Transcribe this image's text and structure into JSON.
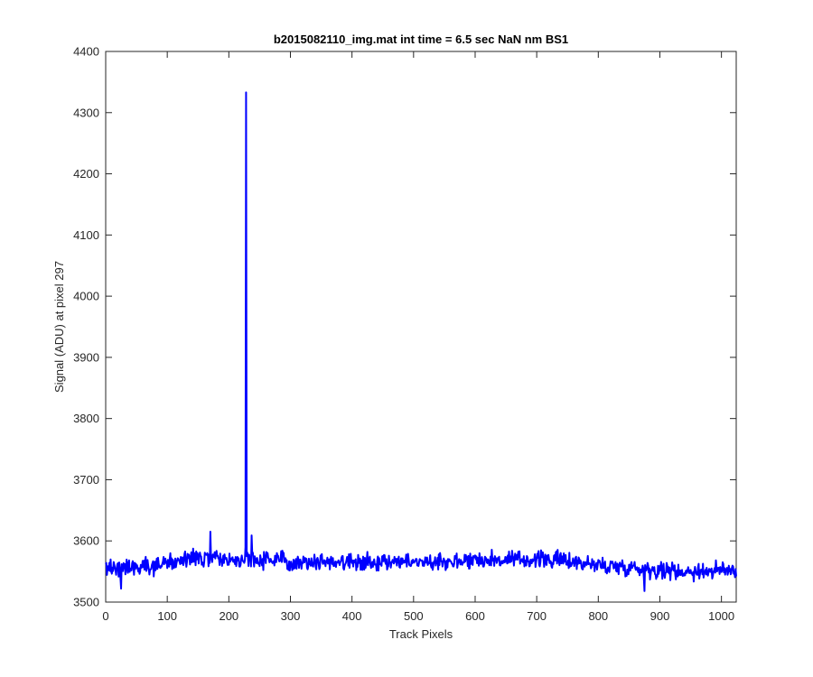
{
  "chart_data": {
    "type": "line",
    "title": "b2015082110_img.mat int time = 6.5 sec  NaN nm BS1",
    "xlabel": "Track Pixels",
    "ylabel": "Signal (ADU) at pixel 297",
    "xlim": [
      0,
      1024
    ],
    "ylim": [
      3500,
      4400
    ],
    "xticks": [
      0,
      100,
      200,
      300,
      400,
      500,
      600,
      700,
      800,
      900,
      1000
    ],
    "yticks": [
      3500,
      3600,
      3700,
      3800,
      3900,
      4000,
      4100,
      4200,
      4300,
      4400
    ],
    "grid": false,
    "series": [
      {
        "color": "#0000ff",
        "baseline": [
          [
            0,
            3555
          ],
          [
            50,
            3558
          ],
          [
            100,
            3564
          ],
          [
            150,
            3572
          ],
          [
            200,
            3568
          ],
          [
            250,
            3570
          ],
          [
            300,
            3567
          ],
          [
            350,
            3566
          ],
          [
            400,
            3566
          ],
          [
            450,
            3566
          ],
          [
            500,
            3566
          ],
          [
            550,
            3566
          ],
          [
            600,
            3570
          ],
          [
            650,
            3568
          ],
          [
            700,
            3570
          ],
          [
            750,
            3568
          ],
          [
            800,
            3560
          ],
          [
            850,
            3557
          ],
          [
            900,
            3552
          ],
          [
            950,
            3550
          ],
          [
            1000,
            3552
          ],
          [
            1024,
            3552
          ]
        ],
        "noise_amplitude": 12,
        "spikes": [
          {
            "x": 227,
            "y": 3590
          },
          {
            "x": 228,
            "y": 4333
          },
          {
            "x": 229,
            "y": 3575
          },
          {
            "x": 170,
            "y": 3615
          },
          {
            "x": 237,
            "y": 3609
          },
          {
            "x": 875,
            "y": 3518
          },
          {
            "x": 25,
            "y": 3522
          }
        ]
      }
    ]
  }
}
